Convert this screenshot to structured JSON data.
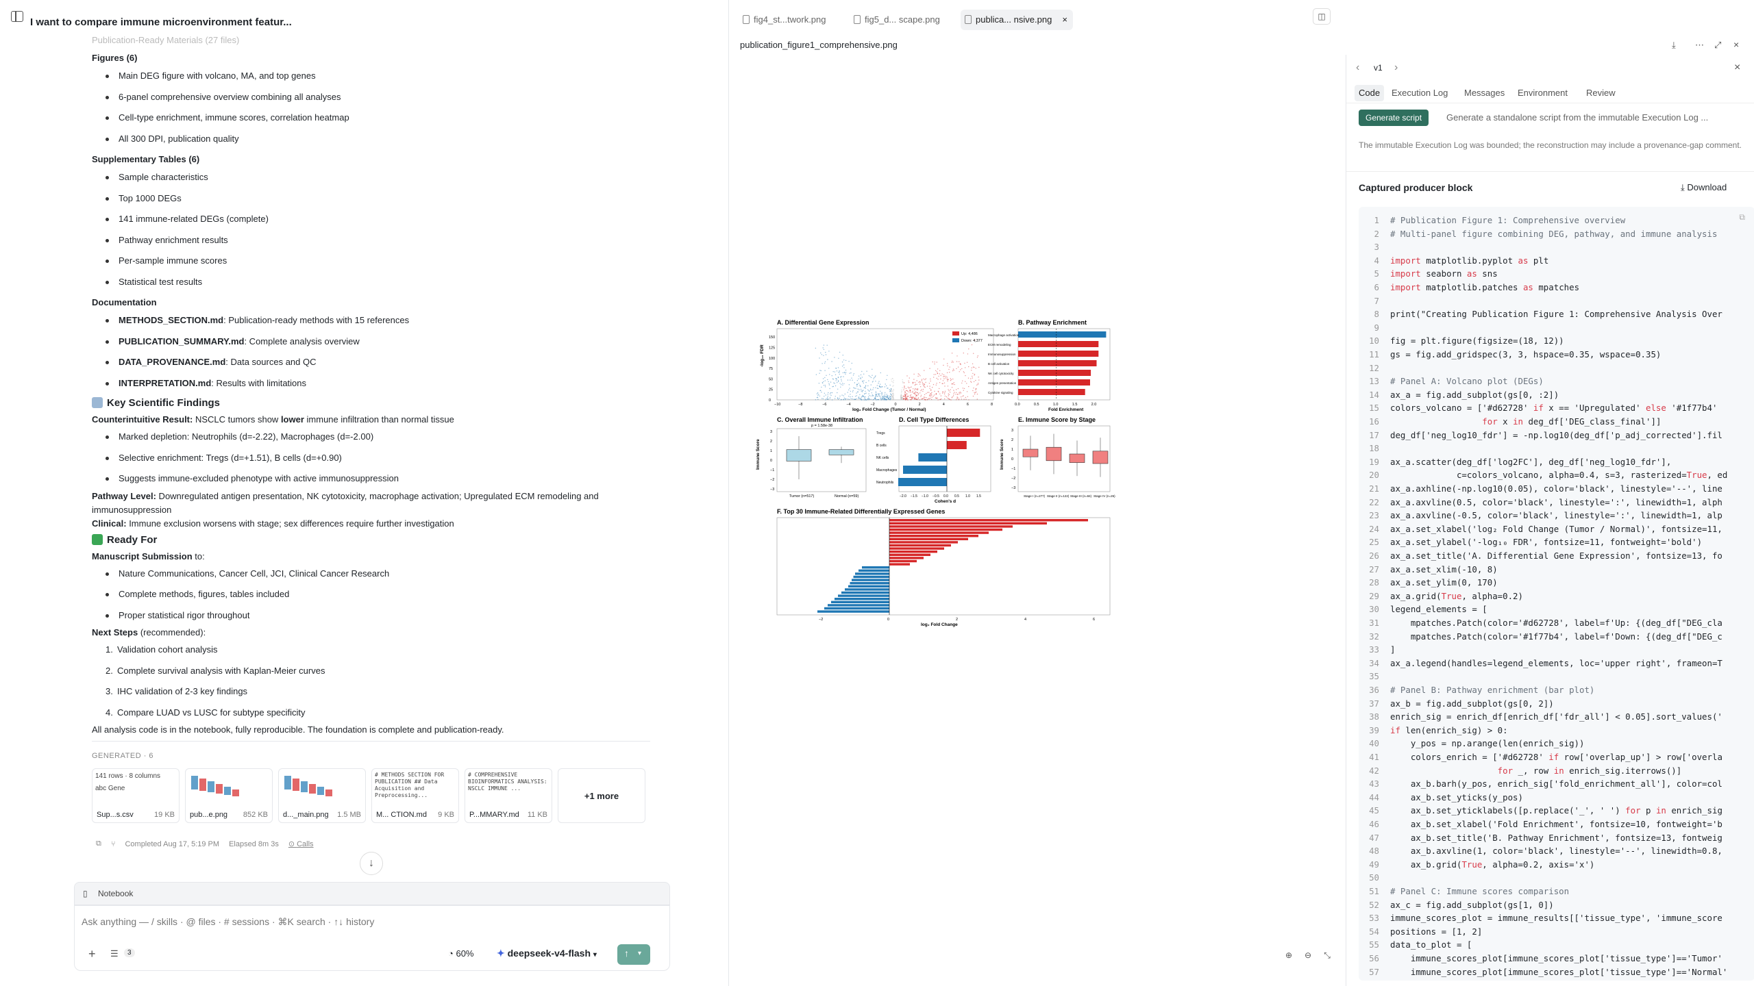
{
  "chat": {
    "title": "I want to compare immune microenvironment featur...",
    "faded_line": "Publication-Ready Materials (27 files)",
    "sections": [
      {
        "type": "h",
        "text": "Figures (6)"
      },
      {
        "type": "ul",
        "items": [
          "Main DEG figure with volcano, MA, and top genes",
          "6-panel comprehensive overview combining all analyses",
          "Cell-type enrichment, immune scores, correlation heatmap",
          "All 300 DPI, publication quality"
        ]
      },
      {
        "type": "h",
        "text": "Supplementary Tables (6)"
      },
      {
        "type": "ul",
        "items": [
          "Sample characteristics",
          "Top 1000 DEGs",
          "141 immune-related DEGs (complete)",
          "Pathway enrichment results",
          "Per-sample immune scores",
          "Statistical test results"
        ]
      },
      {
        "type": "h",
        "text": "Documentation"
      }
    ],
    "docs": [
      {
        "b": "METHODS_SECTION.md",
        "t": ": Publication-ready methods with 15 references"
      },
      {
        "b": "PUBLICATION_SUMMARY.md",
        "t": ": Complete analysis overview"
      },
      {
        "b": "DATA_PROVENANCE.md",
        "t": ": Data sources and QC"
      },
      {
        "b": "INTERPRETATION.md",
        "t": ": Results with limitations"
      }
    ],
    "key_findings": "Key Scientific Findings",
    "counter_b": "Counterintuitive Result:",
    "counter_t1": " NSCLC tumors show ",
    "counter_bold": "lower",
    "counter_t2": " immune infiltration than normal tissue",
    "findings": [
      "Marked depletion: Neutrophils (d=-2.22), Macrophages (d=-2.00)",
      "Selective enrichment: Tregs (d=+1.51), B cells (d=+0.90)",
      "Suggests immune-excluded phenotype with active immunosuppression"
    ],
    "pathway_b": "Pathway Level:",
    "pathway_t": " Downregulated antigen presentation, NK cytotoxicity, macrophage activation; Upregulated ECM remodeling and immunosuppression",
    "clinical_b": "Clinical:",
    "clinical_t": " Immune exclusion worsens with stage; sex differences require further investigation",
    "ready": "Ready For",
    "manuscript": "Manuscript Submission",
    "manuscript_t": " to:",
    "manu_items": [
      "Nature Communications, Cancer Cell, JCI, Clinical Cancer Research",
      "Complete methods, figures, tables included",
      "Proper statistical rigor throughout"
    ],
    "next": "Next Steps",
    "next_t": " (recommended):",
    "next_items": [
      "Validation cohort analysis",
      "Complete survival analysis with Kaplan-Meier curves",
      "IHC validation of 2-3 key findings",
      "Compare LUAD vs LUSC for subtype specificity"
    ],
    "closing": "All analysis code is in the notebook, fully reproducible. The foundation is complete and publication-ready.",
    "generated": "GENERATED · 6",
    "cards": [
      {
        "name": "Sup...s.csv",
        "size": "19 KB",
        "preview1": "141 rows · 8 columns",
        "preview2": "Gene"
      },
      {
        "name": "pub...e.png",
        "size": "852 KB"
      },
      {
        "name": "d..._main.png",
        "size": "1.5 MB"
      },
      {
        "name": "M... CTION.md",
        "size": "9 KB",
        "preview": "# METHODS SECTION FOR PUBLICATION ## Data Acquisition and Preprocessing..."
      },
      {
        "name": "P...MMARY.md",
        "size": "11 KB",
        "preview": "# COMPREHENSIVE BIOINFORMATICS ANALYSIS: NSCLC IMMUNE ..."
      }
    ],
    "more": "+1 more",
    "completed": "Completed Aug 17, 5:19 PM",
    "elapsed": "Elapsed 8m 3s",
    "calls": "Calls",
    "notebook": "Notebook",
    "placeholder": "Ask anything — / skills · @ files · # sessions · ⌘K search · ↑↓ history",
    "badge": "3",
    "zoom": "60%",
    "model": "deepseek-v4-flash"
  },
  "viewer": {
    "tabs": [
      "fig4_st...twork.png",
      "fig5_d... scape.png",
      "publica... nsive.png"
    ],
    "file": "publication_figure1_comprehensive.png"
  },
  "panel": {
    "version": "v1",
    "tabs": [
      "Code",
      "Execution Log",
      "Messages",
      "Environment",
      "Review"
    ],
    "gen_btn": "Generate script",
    "gen_desc": "Generate a standalone script from the immutable Execution Log ...",
    "note": "The immutable Execution Log was bounded; the reconstruction may include a provenance-gap comment.",
    "block": "Captured producer block",
    "download": "Download"
  },
  "figure": {
    "a_title": "A. Differential Gene Expression",
    "a_x": "log₂ Fold Change (Tumor / Normal)",
    "a_y": "-log₁₀ FDR",
    "legend_up": "Up: 4,486",
    "legend_down": "Down: 4,377",
    "a_xticks": [
      "−10",
      "−8",
      "−6",
      "−4",
      "−2",
      "0",
      "2",
      "4",
      "6",
      "8"
    ],
    "a_yticks": [
      "0",
      "25",
      "50",
      "75",
      "100",
      "125",
      "150"
    ],
    "b_title": "B. Pathway Enrichment",
    "b_x": "Fold Enrichment",
    "b_xticks": [
      "0.0",
      "0.5",
      "1.0",
      "1.5",
      "2.0"
    ],
    "b_paths": [
      "Macrophage activation",
      "ECM remodeling",
      "Immunosuppression",
      "B cell activation",
      "NK cell cytotoxicity",
      "Antigen presentation",
      "Cytokine signaling"
    ],
    "b_values": [
      2.3,
      2.1,
      2.1,
      2.05,
      1.9,
      1.88,
      1.75
    ],
    "c_title": "C. Overall Immune Infiltration",
    "c_sub": "p = 1.58e-38",
    "c_y": "Immune Score",
    "c_groups": [
      "Tumor (n=517)",
      "Normal (n=59)"
    ],
    "c_yticks": [
      "−3",
      "−2",
      "−1",
      "0",
      "1",
      "2",
      "3"
    ],
    "d_title": "D. Cell Type Differences",
    "d_x": "Cohen's d",
    "d_cells": [
      "Tregs",
      "B cells",
      "NK cells",
      "Macrophages",
      "Neutrophils"
    ],
    "d_values": [
      1.51,
      0.9,
      -1.3,
      -2.0,
      -2.22
    ],
    "d_xticks": [
      "−2.0",
      "−1.5",
      "−1.0",
      "−0.5",
      "0.0",
      "0.5",
      "1.0",
      "1.5"
    ],
    "e_title": "E. Immune Score by Stage",
    "e_y": "Immune Score",
    "e_groups": [
      "Stage I (n=277)",
      "Stage II (n=122)",
      "Stage III (n=84)",
      "Stage IV (n=26)"
    ],
    "e_yticks": [
      "−3",
      "−2",
      "−1",
      "0",
      "1",
      "2",
      "3"
    ],
    "f_title": "F. Top 30 Immune-Related Differentially Expressed Genes",
    "f_x": "log₂ Fold Change",
    "f_xticks": [
      "−2",
      "0",
      "2",
      "4",
      "6"
    ],
    "f_values": [
      5.8,
      4.6,
      3.6,
      3.3,
      2.9,
      2.6,
      2.3,
      2.0,
      1.8,
      1.6,
      1.4,
      1.2,
      1.0,
      0.8,
      0.6,
      -0.8,
      -0.9,
      -1.0,
      -1.05,
      -1.1,
      -1.15,
      -1.2,
      -1.3,
      -1.4,
      -1.5,
      -1.6,
      -1.7,
      -1.8,
      -1.9,
      -2.1
    ]
  },
  "code": [
    [
      1,
      "cm",
      "# Publication Figure 1: Comprehensive overview"
    ],
    [
      2,
      "cm",
      "# Multi-panel figure combining DEG, pathway, and immune analysis"
    ],
    [
      3,
      "",
      ""
    ],
    [
      4,
      "",
      "import matplotlib.pyplot as plt"
    ],
    [
      5,
      "",
      "import seaborn as sns"
    ],
    [
      6,
      "",
      "import matplotlib.patches as mpatches"
    ],
    [
      7,
      "",
      ""
    ],
    [
      8,
      "",
      "print(\"Creating Publication Figure 1: Comprehensive Analysis Over"
    ],
    [
      9,
      "",
      ""
    ],
    [
      10,
      "",
      "fig = plt.figure(figsize=(18, 12))"
    ],
    [
      11,
      "",
      "gs = fig.add_gridspec(3, 3, hspace=0.35, wspace=0.35)"
    ],
    [
      12,
      "",
      ""
    ],
    [
      13,
      "cm",
      "# Panel A: Volcano plot (DEGs)"
    ],
    [
      14,
      "",
      "ax_a = fig.add_subplot(gs[0, :2])"
    ],
    [
      15,
      "",
      "colors_volcano = ['#d62728' if x == 'Upregulated' else '#1f77b4'"
    ],
    [
      16,
      "",
      "                  for x in deg_df['DEG_class_final']]"
    ],
    [
      17,
      "",
      "deg_df['neg_log10_fdr'] = -np.log10(deg_df['p_adj_corrected'].fil"
    ],
    [
      18,
      "",
      ""
    ],
    [
      19,
      "",
      "ax_a.scatter(deg_df['log2FC'], deg_df['neg_log10_fdr'],"
    ],
    [
      20,
      "",
      "             c=colors_volcano, alpha=0.4, s=3, rasterized=True, ed"
    ],
    [
      21,
      "",
      "ax_a.axhline(-np.log10(0.05), color='black', linestyle='--', line"
    ],
    [
      22,
      "",
      "ax_a.axvline(0.5, color='black', linestyle=':', linewidth=1, alph"
    ],
    [
      23,
      "",
      "ax_a.axvline(-0.5, color='black', linestyle=':', linewidth=1, alp"
    ],
    [
      24,
      "",
      "ax_a.set_xlabel('log₂ Fold Change (Tumor / Normal)', fontsize=11,"
    ],
    [
      25,
      "",
      "ax_a.set_ylabel('-log₁₀ FDR', fontsize=11, fontweight='bold')"
    ],
    [
      26,
      "",
      "ax_a.set_title('A. Differential Gene Expression', fontsize=13, fo"
    ],
    [
      27,
      "",
      "ax_a.set_xlim(-10, 8)"
    ],
    [
      28,
      "",
      "ax_a.set_ylim(0, 170)"
    ],
    [
      29,
      "",
      "ax_a.grid(True, alpha=0.2)"
    ],
    [
      30,
      "",
      "legend_elements = ["
    ],
    [
      31,
      "",
      "    mpatches.Patch(color='#d62728', label=f'Up: {(deg_df[\"DEG_cla"
    ],
    [
      32,
      "",
      "    mpatches.Patch(color='#1f77b4', label=f'Down: {(deg_df[\"DEG_c"
    ],
    [
      33,
      "",
      "]"
    ],
    [
      34,
      "",
      "ax_a.legend(handles=legend_elements, loc='upper right', frameon=T"
    ],
    [
      35,
      "",
      ""
    ],
    [
      36,
      "cm",
      "# Panel B: Pathway enrichment (bar plot)"
    ],
    [
      37,
      "",
      "ax_b = fig.add_subplot(gs[0, 2])"
    ],
    [
      38,
      "",
      "enrich_sig = enrich_df[enrich_df['fdr_all'] < 0.05].sort_values('"
    ],
    [
      39,
      "",
      "if len(enrich_sig) > 0:"
    ],
    [
      40,
      "",
      "    y_pos = np.arange(len(enrich_sig))"
    ],
    [
      41,
      "",
      "    colors_enrich = ['#d62728' if row['overlap_up'] > row['overla"
    ],
    [
      42,
      "",
      "                     for _, row in enrich_sig.iterrows()]"
    ],
    [
      43,
      "",
      "    ax_b.barh(y_pos, enrich_sig['fold_enrichment_all'], color=col"
    ],
    [
      44,
      "",
      "    ax_b.set_yticks(y_pos)"
    ],
    [
      45,
      "",
      "    ax_b.set_yticklabels([p.replace('_', ' ') for p in enrich_sig"
    ],
    [
      46,
      "",
      "    ax_b.set_xlabel('Fold Enrichment', fontsize=10, fontweight='b"
    ],
    [
      47,
      "",
      "    ax_b.set_title('B. Pathway Enrichment', fontsize=13, fontweig"
    ],
    [
      48,
      "",
      "    ax_b.axvline(1, color='black', linestyle='--', linewidth=0.8,"
    ],
    [
      49,
      "",
      "    ax_b.grid(True, alpha=0.2, axis='x')"
    ],
    [
      50,
      "",
      ""
    ],
    [
      51,
      "cm",
      "# Panel C: Immune scores comparison"
    ],
    [
      52,
      "",
      "ax_c = fig.add_subplot(gs[1, 0])"
    ],
    [
      53,
      "",
      "immune_scores_plot = immune_results[['tissue_type', 'immune_score"
    ],
    [
      54,
      "",
      "positions = [1, 2]"
    ],
    [
      55,
      "",
      "data_to_plot = ["
    ],
    [
      56,
      "",
      "    immune_scores_plot[immune_scores_plot['tissue_type']=='Tumor'"
    ],
    [
      57,
      "",
      "    immune_scores_plot[immune_scores_plot['tissue_type']=='Normal'"
    ]
  ],
  "colors": {
    "up": "#d62728",
    "down": "#1f77b4",
    "accent": "#2f6f5e"
  }
}
